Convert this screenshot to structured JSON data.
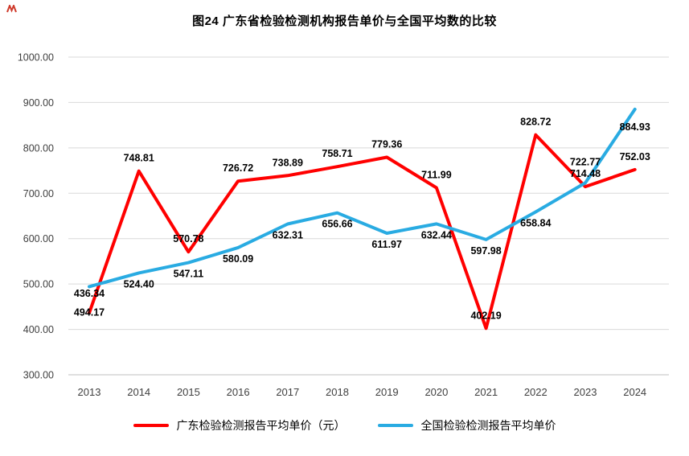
{
  "chart_data": {
    "type": "line",
    "title": "图24  广东省检验检测机构报告单价与全国平均数的比较",
    "categories": [
      "2013",
      "2014",
      "2015",
      "2016",
      "2017",
      "2018",
      "2019",
      "2020",
      "2021",
      "2022",
      "2023",
      "2024"
    ],
    "series": [
      {
        "name": "广东检验检测报告平均单价（元）",
        "color": "#ff0000",
        "values": [
          436.34,
          748.81,
          570.78,
          726.72,
          738.89,
          758.71,
          779.36,
          711.99,
          402.19,
          828.72,
          714.48,
          752.03
        ]
      },
      {
        "name": "全国检验检测报告平均单价",
        "color": "#29abe2",
        "values": [
          494.17,
          524.4,
          547.11,
          580.09,
          632.31,
          656.66,
          611.97,
          632.44,
          597.98,
          658.84,
          722.77,
          884.93
        ]
      }
    ],
    "ylim": [
      300,
      1000
    ],
    "ytick_step": 100,
    "ytick_labels": [
      "300.00",
      "400.00",
      "500.00",
      "600.00",
      "700.00",
      "800.00",
      "900.00",
      "1000.00"
    ],
    "grid": true,
    "legend_position": "bottom",
    "colors": {
      "gridline": "#d9d9d9",
      "axis_line": "#bfbfbf",
      "tick_text": "#404040",
      "data_label": "#000000"
    }
  }
}
